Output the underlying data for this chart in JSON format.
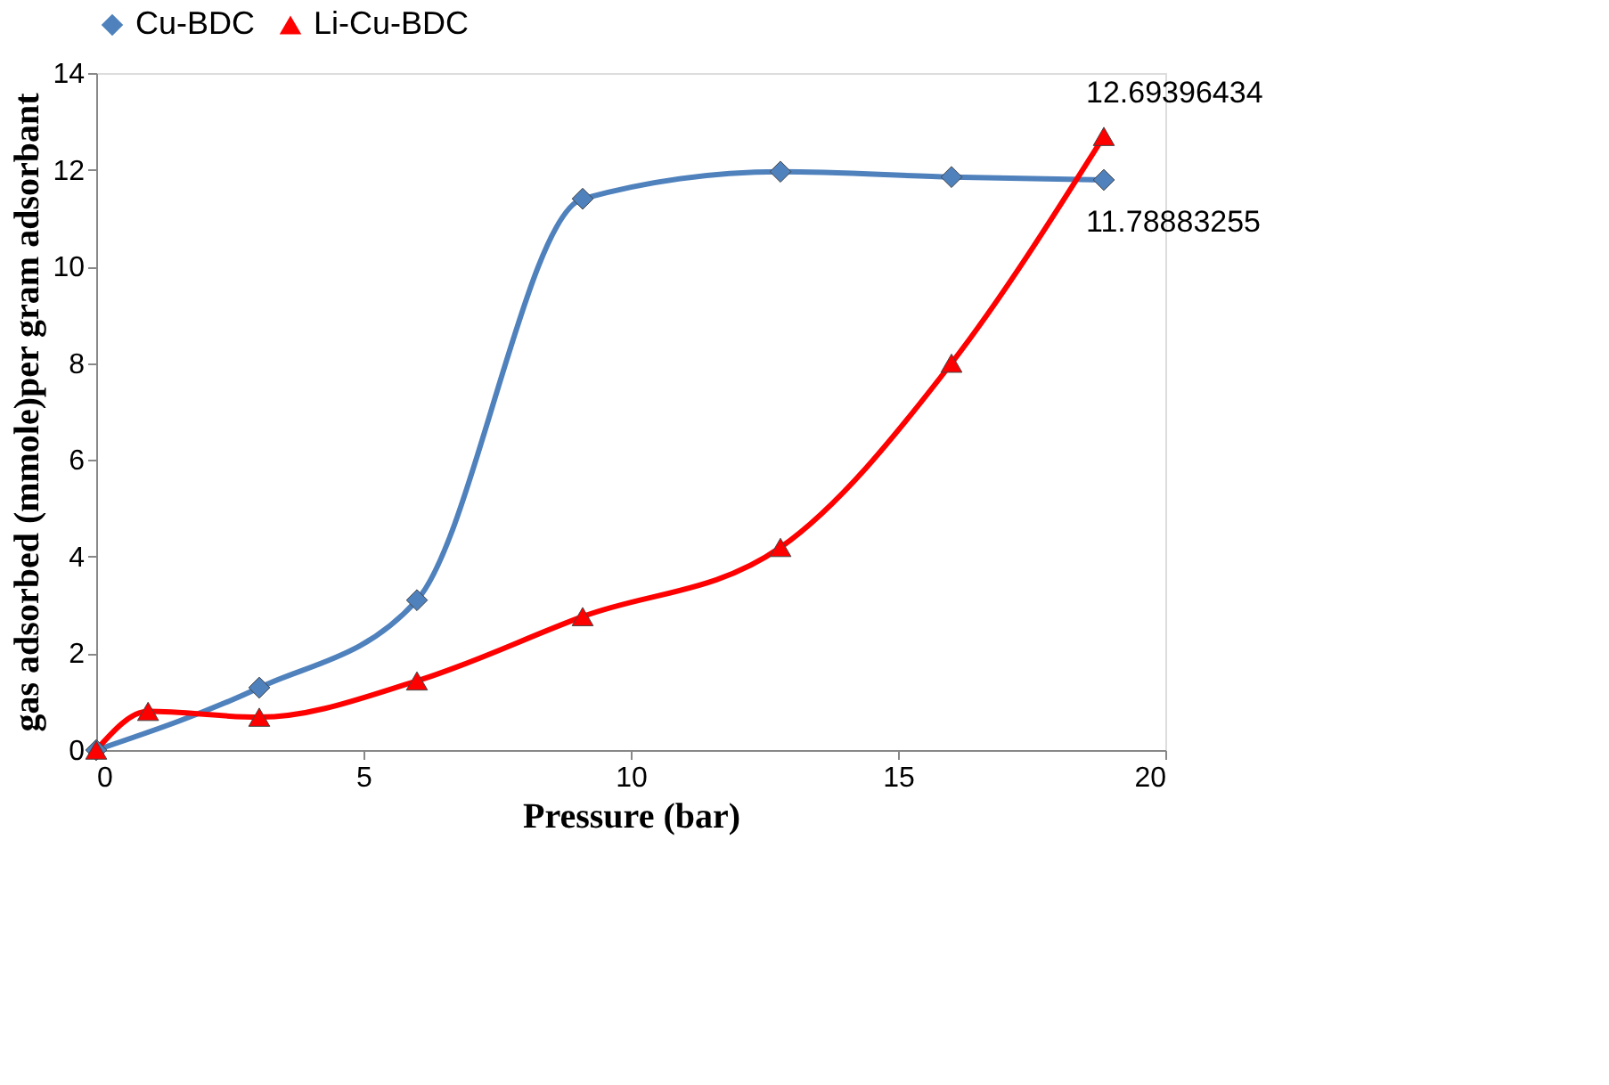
{
  "chart_data": {
    "type": "line",
    "xlabel": "Pressure (bar)",
    "ylabel": "gas adsorbed (mmole)per gram adsorbant",
    "xlim": [
      0,
      20
    ],
    "xticks": [
      0,
      5,
      10,
      15,
      20
    ],
    "ylim": [
      0,
      14
    ],
    "yticks": [
      0,
      2,
      4,
      6,
      8,
      10,
      12,
      14
    ],
    "grid": false,
    "legend": "top",
    "line_style": "solid",
    "series": [
      {
        "name": "Cu-BDC",
        "color": "#4f81bd",
        "marker": "diamond",
        "x": [
          0,
          0.97,
          3.05,
          6.0,
          9.1,
          12.8,
          16.0,
          18.85
        ],
        "values": [
          0,
          null,
          1.29,
          3.1,
          11.4,
          11.96,
          11.85,
          11.79
        ]
      },
      {
        "name": "Li-Cu-BDC",
        "color": "#ff0000",
        "marker": "triangle",
        "x": [
          0,
          0.97,
          3.05,
          6.0,
          9.1,
          12.8,
          16.0,
          18.85
        ],
        "values": [
          0,
          0.8,
          0.68,
          1.43,
          2.76,
          4.19,
          8.0,
          12.69
        ]
      }
    ],
    "annotations": [
      {
        "text": "12.69396434",
        "x": 18.85,
        "y": 12.69
      },
      {
        "text": "11.78883255",
        "x": 18.85,
        "y": 11.79
      }
    ]
  }
}
